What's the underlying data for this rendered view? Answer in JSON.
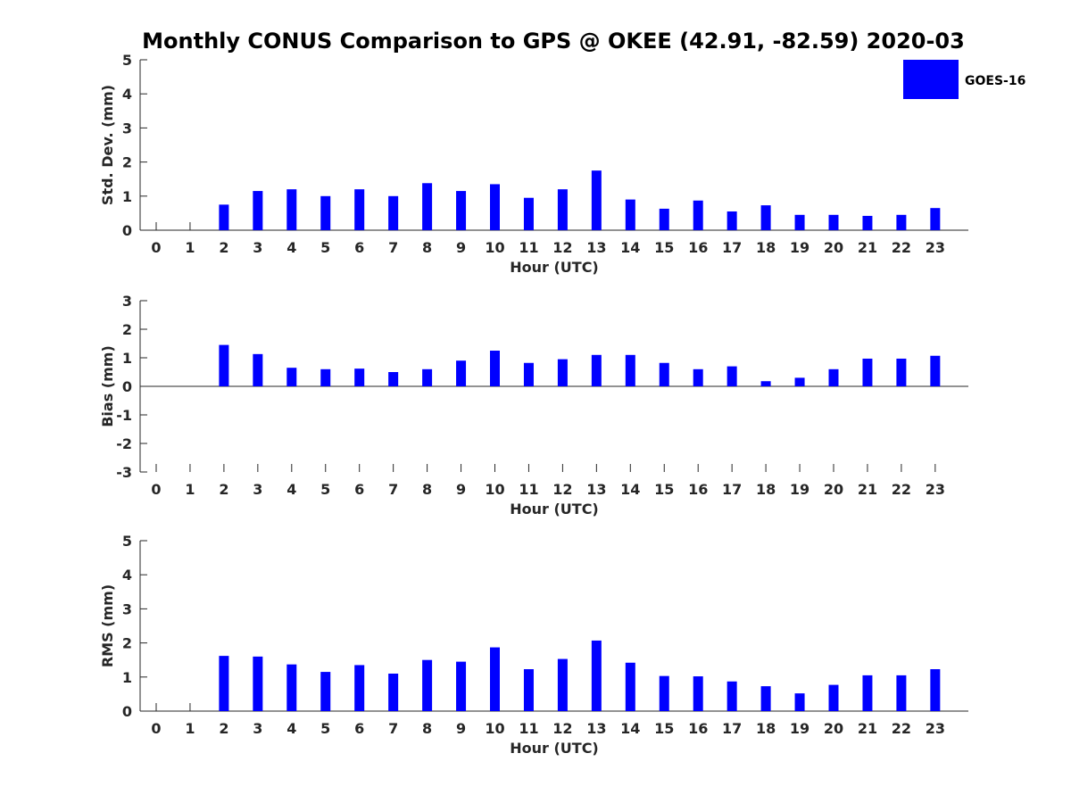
{
  "chart_data": {
    "title": "Monthly CONUS Comparison to GPS @ OKEE (42.91, -82.59) 2020-03",
    "legend": {
      "label": "GOES-16",
      "color": "#0000ff",
      "placement": "top-right"
    },
    "panels": [
      {
        "type": "bar",
        "name": "std-dev",
        "ylabel": "Std. Dev. (mm)",
        "xlabel": "Hour (UTC)",
        "ylim": [
          0,
          5
        ],
        "yticks": [
          0,
          1,
          2,
          3,
          4,
          5
        ],
        "categories": [
          "0",
          "1",
          "2",
          "3",
          "4",
          "5",
          "6",
          "7",
          "8",
          "9",
          "10",
          "11",
          "12",
          "13",
          "14",
          "15",
          "16",
          "17",
          "18",
          "19",
          "20",
          "21",
          "22",
          "23"
        ],
        "values": [
          null,
          null,
          0.75,
          1.15,
          1.2,
          1.0,
          1.2,
          1.0,
          1.38,
          1.15,
          1.35,
          0.95,
          1.2,
          1.75,
          0.9,
          0.63,
          0.87,
          0.55,
          0.73,
          0.45,
          0.45,
          0.42,
          0.45,
          0.65
        ]
      },
      {
        "type": "bar",
        "name": "bias",
        "ylabel": "Bias (mm)",
        "xlabel": "Hour (UTC)",
        "ylim": [
          -3,
          3
        ],
        "yticks": [
          -3,
          -2,
          -1,
          0,
          1,
          2,
          3
        ],
        "categories": [
          "0",
          "1",
          "2",
          "3",
          "4",
          "5",
          "6",
          "7",
          "8",
          "9",
          "10",
          "11",
          "12",
          "13",
          "14",
          "15",
          "16",
          "17",
          "18",
          "19",
          "20",
          "21",
          "22",
          "23"
        ],
        "values": [
          null,
          null,
          1.45,
          1.13,
          0.65,
          0.6,
          0.62,
          0.5,
          0.6,
          0.9,
          1.25,
          0.82,
          0.95,
          1.1,
          1.1,
          0.82,
          0.6,
          0.7,
          0.18,
          0.3,
          0.6,
          0.97,
          0.97,
          1.07
        ]
      },
      {
        "type": "bar",
        "name": "rms",
        "ylabel": "RMS (mm)",
        "xlabel": "Hour (UTC)",
        "ylim": [
          0,
          5
        ],
        "yticks": [
          0,
          1,
          2,
          3,
          4,
          5
        ],
        "categories": [
          "0",
          "1",
          "2",
          "3",
          "4",
          "5",
          "6",
          "7",
          "8",
          "9",
          "10",
          "11",
          "12",
          "13",
          "14",
          "15",
          "16",
          "17",
          "18",
          "19",
          "20",
          "21",
          "22",
          "23"
        ],
        "values": [
          null,
          null,
          1.62,
          1.6,
          1.37,
          1.15,
          1.35,
          1.1,
          1.5,
          1.45,
          1.87,
          1.23,
          1.53,
          2.07,
          1.42,
          1.03,
          1.02,
          0.87,
          0.73,
          0.52,
          0.77,
          1.05,
          1.05,
          1.23
        ]
      }
    ]
  }
}
